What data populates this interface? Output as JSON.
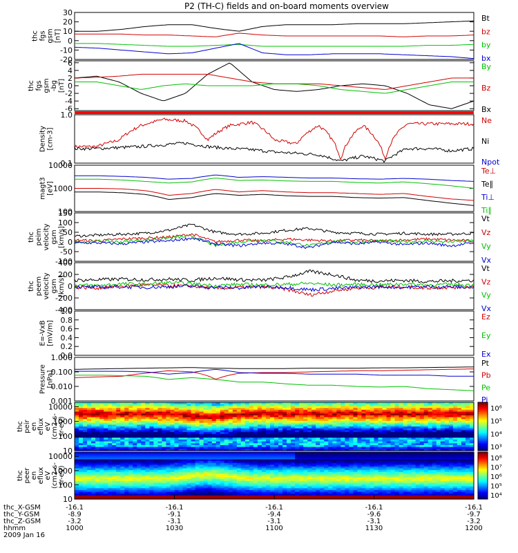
{
  "title": "P2 (TH-C) fields and on-board moments overview",
  "chart_data": [
    {
      "id": "bfield_gsm",
      "type": "line",
      "ylabel": [
        "thc",
        "fgs",
        "gsm",
        "[nT]"
      ],
      "yticks": [
        "30",
        "20",
        "10",
        "0",
        "-10",
        "-20"
      ],
      "ylim": [
        -20,
        30
      ],
      "legend": [
        {
          "name": "Bt",
          "color": "#000000"
        },
        {
          "name": "bz",
          "color": "#d00000"
        },
        {
          "name": "by",
          "color": "#00c000"
        },
        {
          "name": "bx",
          "color": "#0000d0"
        }
      ],
      "series": [
        {
          "name": "Bt",
          "color": "#000000",
          "values": [
            10,
            10,
            12,
            15,
            17,
            17,
            13,
            10,
            15,
            17,
            17,
            17,
            18,
            18,
            18,
            19,
            20,
            21
          ]
        },
        {
          "name": "bz",
          "color": "#d00000",
          "values": [
            7,
            7,
            7,
            6,
            6,
            5,
            4,
            8,
            6,
            5,
            5,
            5,
            5,
            5,
            4,
            5,
            5,
            6
          ]
        },
        {
          "name": "by",
          "color": "#00c000",
          "values": [
            -3,
            -3,
            -4,
            -5,
            -6,
            -6,
            -5,
            -4,
            -6,
            -6,
            -6,
            -6,
            -6,
            -6,
            -6,
            -5,
            -5,
            -4
          ]
        },
        {
          "name": "bx",
          "color": "#0000d0",
          "values": [
            -7,
            -8,
            -10,
            -12,
            -14,
            -13,
            -8,
            -3,
            -13,
            -15,
            -15,
            -14,
            -14,
            -14,
            -15,
            -16,
            -17,
            -19
          ]
        }
      ]
    },
    {
      "id": "bfield_zoom",
      "type": "line",
      "ylabel": [
        "thc",
        "fgs",
        "gsm",
        "-bg",
        "[nT]"
      ],
      "yticks": [
        "6",
        "4",
        "2",
        "0",
        "-2",
        "-4",
        "-6"
      ],
      "ylim": [
        -6.5,
        6.5
      ],
      "legend": [
        {
          "name": "By",
          "color": "#00c000"
        },
        {
          "name": "Bz",
          "color": "#d00000"
        },
        {
          "name": "Bx",
          "color": "#000000"
        }
      ],
      "series": [
        {
          "name": "Bx",
          "color": "#000000",
          "values": [
            2,
            2.5,
            1,
            -2,
            -4,
            -2,
            3,
            6,
            1,
            -1,
            -1.5,
            -1,
            0,
            0.5,
            0,
            -2,
            -5,
            -6,
            -4
          ]
        },
        {
          "name": "Bz",
          "color": "#d00000",
          "values": [
            2,
            2.2,
            2.5,
            3,
            3,
            3,
            3,
            2,
            1,
            0.5,
            0.5,
            0.5,
            0,
            -0.5,
            -1,
            0,
            1,
            2,
            2
          ]
        },
        {
          "name": "By",
          "color": "#00c000",
          "values": [
            1,
            1,
            0,
            -1,
            0,
            0.5,
            0,
            0,
            0,
            0.5,
            0.5,
            0,
            -1,
            -1.5,
            -2,
            -1,
            0,
            1,
            1
          ]
        }
      ]
    },
    {
      "id": "density",
      "type": "line",
      "scale": "log",
      "ylabel": [
        "Density",
        "[cm-3]"
      ],
      "yticks": [
        "1.0",
        "0.1"
      ],
      "ylim": [
        0.1,
        1.0
      ],
      "legend": [
        {
          "name": "Ne",
          "color": "#d00000"
        },
        {
          "name": "Ni",
          "color": "#000000"
        },
        {
          "name": "Npot",
          "color": "#0000d0"
        }
      ],
      "series": [
        {
          "name": "Ne",
          "color": "#d00000",
          "values": [
            0.22,
            0.22,
            0.3,
            0.6,
            0.8,
            0.75,
            0.3,
            0.6,
            0.7,
            0.3,
            0.25,
            0.6,
            0.12,
            0.6,
            0.12,
            0.65,
            0.65,
            0.65,
            0.65
          ]
        },
        {
          "name": "Ni",
          "color": "#000000",
          "values": [
            0.2,
            0.2,
            0.21,
            0.22,
            0.24,
            0.26,
            0.22,
            0.2,
            0.19,
            0.17,
            0.16,
            0.15,
            0.11,
            0.14,
            0.11,
            0.2,
            0.2,
            0.18,
            0.2
          ]
        }
      ]
    },
    {
      "id": "temperature",
      "type": "line",
      "scale": "log",
      "ylabel": [
        "magt3",
        "[eV]"
      ],
      "yticks": [
        "10000",
        "1000",
        "100"
      ],
      "ylim": [
        100,
        10000
      ],
      "legend": [
        {
          "name": "Te⊥",
          "color": "#d00000"
        },
        {
          "name": "Te∥",
          "color": "#000000"
        },
        {
          "name": "Ti⊥",
          "color": "#0000d0"
        },
        {
          "name": "Ti∥",
          "color": "#00c000"
        }
      ],
      "series": [
        {
          "name": "Ti⊥",
          "color": "#0000d0",
          "values": [
            3500,
            3500,
            3300,
            3000,
            2500,
            2700,
            3800,
            3000,
            3200,
            3000,
            2800,
            2800,
            2600,
            2500,
            2700,
            2500,
            2200,
            2000
          ]
        },
        {
          "name": "Ti∥",
          "color": "#00c000",
          "values": [
            2500,
            2500,
            2300,
            2000,
            1700,
            1900,
            2800,
            2200,
            2300,
            2100,
            2000,
            2000,
            1800,
            1700,
            1900,
            1600,
            1300,
            1000
          ]
        },
        {
          "name": "Te⊥",
          "color": "#d00000",
          "values": [
            1000,
            1000,
            950,
            800,
            500,
            600,
            900,
            700,
            800,
            700,
            650,
            650,
            600,
            550,
            600,
            450,
            350,
            300
          ]
        },
        {
          "name": "Te∥",
          "color": "#000000",
          "values": [
            700,
            700,
            650,
            550,
            330,
            400,
            600,
            500,
            550,
            480,
            450,
            450,
            400,
            380,
            400,
            300,
            230,
            180
          ]
        }
      ]
    },
    {
      "id": "velocity_peim",
      "type": "line",
      "ylabel": [
        "thc",
        "peim",
        "velocity",
        "gsm",
        "[km/s]"
      ],
      "yticks": [
        "150",
        "100",
        "50",
        "0",
        "-50",
        "-100"
      ],
      "ylim": [
        -100,
        150
      ],
      "legend": [
        {
          "name": "Vt",
          "color": "#000000"
        },
        {
          "name": "Vz",
          "color": "#d00000"
        },
        {
          "name": "Vy",
          "color": "#00c000"
        },
        {
          "name": "Vx",
          "color": "#0000d0"
        }
      ],
      "series": [
        {
          "name": "Vt",
          "color": "#000000",
          "values": [
            30,
            35,
            40,
            45,
            60,
            90,
            50,
            40,
            45,
            60,
            70,
            50,
            45,
            40,
            45,
            40,
            40,
            45
          ]
        },
        {
          "name": "Vz",
          "color": "#d00000",
          "values": [
            10,
            5,
            15,
            20,
            25,
            40,
            0,
            10,
            5,
            15,
            10,
            5,
            10,
            5,
            10,
            15,
            10,
            5
          ]
        },
        {
          "name": "Vy",
          "color": "#00c000",
          "values": [
            0,
            5,
            0,
            10,
            20,
            30,
            -20,
            0,
            10,
            0,
            -20,
            5,
            0,
            5,
            0,
            5,
            0,
            5
          ]
        },
        {
          "name": "Vx",
          "color": "#0000d0",
          "values": [
            -5,
            -5,
            -10,
            0,
            5,
            20,
            -10,
            -20,
            -5,
            -10,
            -30,
            0,
            -10,
            0,
            -15,
            -5,
            -20,
            -5
          ]
        }
      ]
    },
    {
      "id": "velocity_peem",
      "type": "line",
      "ylabel": [
        "thc",
        "peem",
        "velocity",
        "gsm",
        "[km/s]"
      ],
      "yticks": [
        "400",
        "200",
        "0",
        "-200",
        "-400"
      ],
      "ylim": [
        -400,
        400
      ],
      "legend": [
        {
          "name": "Vt",
          "color": "#000000"
        },
        {
          "name": "Vz",
          "color": "#d00000"
        },
        {
          "name": "Vy",
          "color": "#00c000"
        },
        {
          "name": "Vx",
          "color": "#0000d0"
        }
      ],
      "series": [
        {
          "name": "Vt",
          "color": "#000000",
          "values": [
            100,
            110,
            120,
            110,
            120,
            100,
            140,
            110,
            100,
            150,
            250,
            200,
            100,
            90,
            100,
            80,
            90,
            100
          ]
        },
        {
          "name": "Vz",
          "color": "#d00000",
          "values": [
            -20,
            -30,
            0,
            20,
            10,
            0,
            -40,
            -20,
            -10,
            -50,
            -150,
            -80,
            -30,
            -20,
            -10,
            -30,
            -20,
            -10
          ]
        },
        {
          "name": "Vy",
          "color": "#00c000",
          "values": [
            20,
            10,
            40,
            30,
            60,
            40,
            10,
            30,
            20,
            30,
            50,
            20,
            30,
            20,
            40,
            20,
            30,
            20
          ]
        },
        {
          "name": "Vx",
          "color": "#0000d0",
          "values": [
            -10,
            -20,
            -10,
            -20,
            -10,
            0,
            -20,
            -30,
            -10,
            -20,
            -60,
            -40,
            -20,
            -10,
            -20,
            -10,
            -10,
            -20
          ]
        }
      ]
    },
    {
      "id": "efield",
      "type": "line",
      "ylabel": [
        "E=-VxB",
        "[mV/m]"
      ],
      "yticks": [
        "1.0",
        "0.8",
        "0.6",
        "0.4",
        "0.2",
        "0.0"
      ],
      "ylim": [
        0.0,
        1.0
      ],
      "legend": [
        {
          "name": "Ez",
          "color": "#d00000"
        },
        {
          "name": "Ey",
          "color": "#00c000"
        },
        {
          "name": "Ex",
          "color": "#0000d0"
        }
      ],
      "series": []
    },
    {
      "id": "pressure",
      "type": "line",
      "scale": "log",
      "ylabel": [
        "Pressure",
        "[nPa]"
      ],
      "yticks": [
        "1.000",
        "0.100",
        "0.010",
        "0.001"
      ],
      "ylim": [
        0.001,
        1.0
      ],
      "legend": [
        {
          "name": "Pt",
          "color": "#000000"
        },
        {
          "name": "Pb",
          "color": "#d00000"
        },
        {
          "name": "Pe",
          "color": "#00c000"
        },
        {
          "name": "Pi",
          "color": "#0000d0"
        }
      ],
      "series": [
        {
          "name": "Pt",
          "color": "#000000",
          "values": [
            0.15,
            0.16,
            0.17,
            0.18,
            0.19,
            0.2,
            0.18,
            0.17,
            0.17,
            0.17,
            0.18,
            0.18,
            0.18,
            0.19,
            0.19,
            0.2,
            0.21,
            0.22
          ]
        },
        {
          "name": "Pb",
          "color": "#d00000",
          "values": [
            0.04,
            0.045,
            0.05,
            0.08,
            0.12,
            0.1,
            0.03,
            0.08,
            0.09,
            0.09,
            0.1,
            0.11,
            0.12,
            0.12,
            0.13,
            0.14,
            0.15,
            0.16
          ]
        },
        {
          "name": "Pi",
          "color": "#0000d0",
          "values": [
            0.11,
            0.11,
            0.11,
            0.1,
            0.07,
            0.09,
            0.15,
            0.09,
            0.08,
            0.08,
            0.07,
            0.07,
            0.07,
            0.06,
            0.06,
            0.06,
            0.05,
            0.05
          ]
        },
        {
          "name": "Pe",
          "color": "#00c000",
          "values": [
            0.06,
            0.06,
            0.055,
            0.05,
            0.03,
            0.04,
            0.03,
            0.02,
            0.02,
            0.015,
            0.012,
            0.012,
            0.01,
            0.009,
            0.01,
            0.007,
            0.006,
            0.005
          ]
        }
      ]
    },
    {
      "id": "ion_spectrogram",
      "type": "heatmap",
      "ylabel": [
        "thc",
        "peir",
        "en",
        "eflux",
        "eV",
        "(cm2-s-",
        "sr-eV)"
      ],
      "yticks": [
        "10000",
        "1000",
        "100",
        "10"
      ],
      "ylim": [
        10,
        20000
      ],
      "colorbar_ticks": [
        "10⁶",
        "10⁵",
        "10⁴",
        "10³"
      ]
    },
    {
      "id": "electron_spectrogram",
      "type": "heatmap",
      "ylabel": [
        "thc",
        "peer",
        "en",
        "eflux",
        "eV",
        "(cm2-s-",
        "sr-eV)"
      ],
      "yticks": [
        "10000",
        "1000",
        "100",
        "10"
      ],
      "ylim": [
        10,
        20000
      ],
      "colorbar_ticks": [
        "10⁸",
        "10⁷",
        "10⁶",
        "10⁵",
        "10⁴"
      ]
    }
  ],
  "xaxis": {
    "row_labels": [
      "thc_X-GSM",
      "thc_Y-GSM",
      "thc_Z-GSM",
      "hhmm",
      "2009 Jan 16"
    ],
    "ticks": [
      {
        "x": "-16.1",
        "y": "-8.9",
        "z": "-3.2",
        "t": "1000"
      },
      {
        "x": "-16.1",
        "y": "-9.1",
        "z": "-3.1",
        "t": "1030"
      },
      {
        "x": "-16.1",
        "y": "-9.4",
        "z": "-3.1",
        "t": "1100"
      },
      {
        "x": "-16.1",
        "y": "-9.6",
        "z": "-3.1",
        "t": "1130"
      },
      {
        "x": "-16.1",
        "y": "-9.7",
        "z": "-3.2",
        "t": "1200"
      }
    ]
  }
}
